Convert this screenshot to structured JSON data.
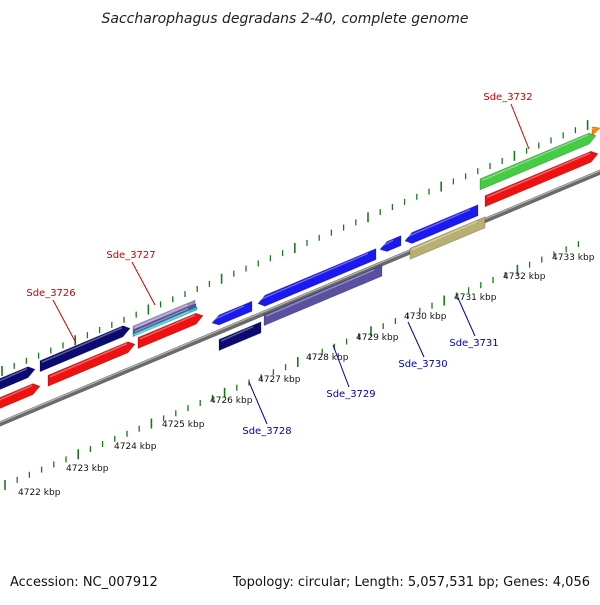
{
  "title": "Saccharophagus degradans 2-40, complete genome",
  "footer": {
    "accession": "Accession: NC_007912",
    "summary": "Topology: circular; Length: 5,057,531 bp; Genes: 4,056"
  },
  "colors": {
    "backbone": "#8a8a8a",
    "tick_mark": "#1a7a1a",
    "forward_label": "#cc0000",
    "reverse_label": "#0000aa",
    "cds_red": "#ee1111",
    "gene_green": "#44cc44",
    "gene_navy": "#0a0a70",
    "gene_blue": "#1a1aee",
    "gene_purple": "#5a50a0",
    "gene_khaki": "#b8b070",
    "gene_cyan": "#22cccc",
    "gene_lavender": "#9a90c8",
    "gene_orange": "#ff8800"
  },
  "ticks": [
    "4722 kbp",
    "4723 kbp",
    "4724 kbp",
    "4725 kbp",
    "4726 kbp",
    "4727 kbp",
    "4728 kbp",
    "4729 kbp",
    "4730 kbp",
    "4731 kbp",
    "4732 kbp",
    "4733 kbp"
  ],
  "gene_labels": {
    "forward": [
      "Sde_3726",
      "Sde_3727",
      "Sde_3732"
    ],
    "reverse": [
      "Sde_3728",
      "Sde_3729",
      "Sde_3730",
      "Sde_3731"
    ]
  }
}
